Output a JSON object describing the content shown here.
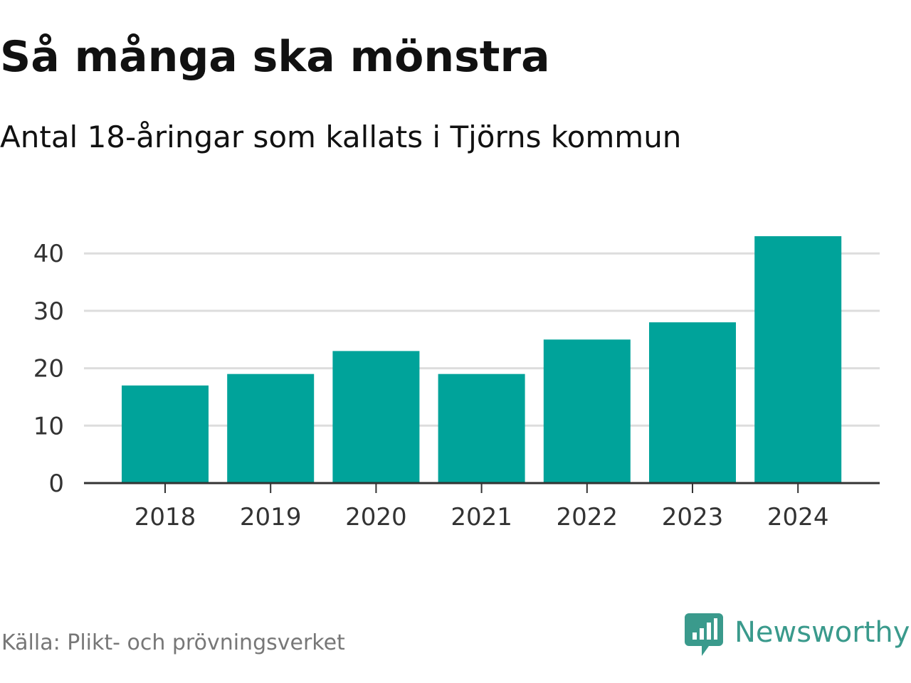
{
  "title": "Så många ska mönstra",
  "subtitle": "Antal 18-åringar som kallats i Tjörns kommun",
  "source": "Källa: Plikt- och prövningsverket",
  "brand": {
    "name": "Newsworthy",
    "icon": "newsworthy-logo-icon",
    "color": "#3a9a8c"
  },
  "colors": {
    "bar": "#00a39a",
    "grid": "#dddddd",
    "axis": "#333333"
  },
  "chart_data": {
    "type": "bar",
    "title": "Så många ska mönstra",
    "subtitle": "Antal 18-åringar som kallats i Tjörns kommun",
    "categories": [
      "2018",
      "2019",
      "2020",
      "2021",
      "2022",
      "2023",
      "2024"
    ],
    "values": [
      17,
      19,
      23,
      19,
      25,
      28,
      43
    ],
    "xlabel": "",
    "ylabel": "",
    "ylim": [
      0,
      45
    ],
    "yticks": [
      0,
      10,
      20,
      30,
      40
    ],
    "grid": true,
    "legend": "none"
  }
}
